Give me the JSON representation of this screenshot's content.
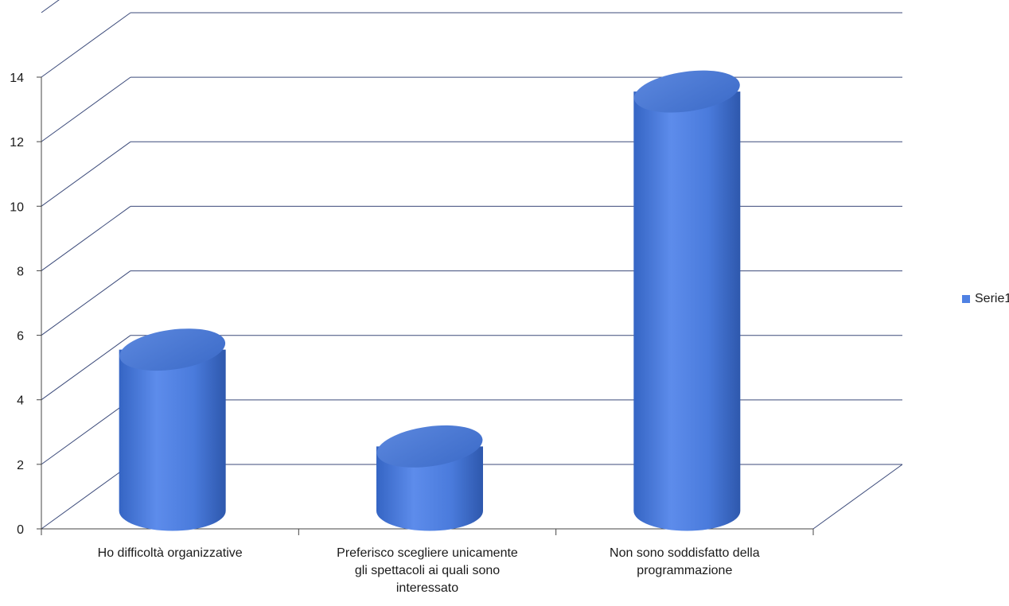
{
  "chart_data": {
    "type": "bar",
    "style": "3d-cylinder",
    "categories": [
      "Ho difficoltà organizzative",
      "Preferisco scegliere unicamente gli spettacoli ai quali sono interessato",
      "Non sono soddisfatto della programmazione"
    ],
    "category_lines": [
      [
        "Ho difficoltà organizzative"
      ],
      [
        "Preferisco scegliere unicamente",
        "gli spettacoli ai quali sono",
        "interessato"
      ],
      [
        "Non sono soddisfatto della",
        "programmazione"
      ]
    ],
    "series": [
      {
        "name": "Serie1",
        "values": [
          5,
          2,
          13
        ]
      }
    ],
    "ylim": [
      0,
      16
    ],
    "yticks": [
      0,
      2,
      4,
      6,
      8,
      10,
      12,
      14
    ],
    "grid": true,
    "legend_position": "right",
    "colors": {
      "series": "#4f81e3",
      "series_dark": "#2f5fb8",
      "series_light": "#8fb0f0",
      "grid": "#3b4a7a"
    }
  }
}
